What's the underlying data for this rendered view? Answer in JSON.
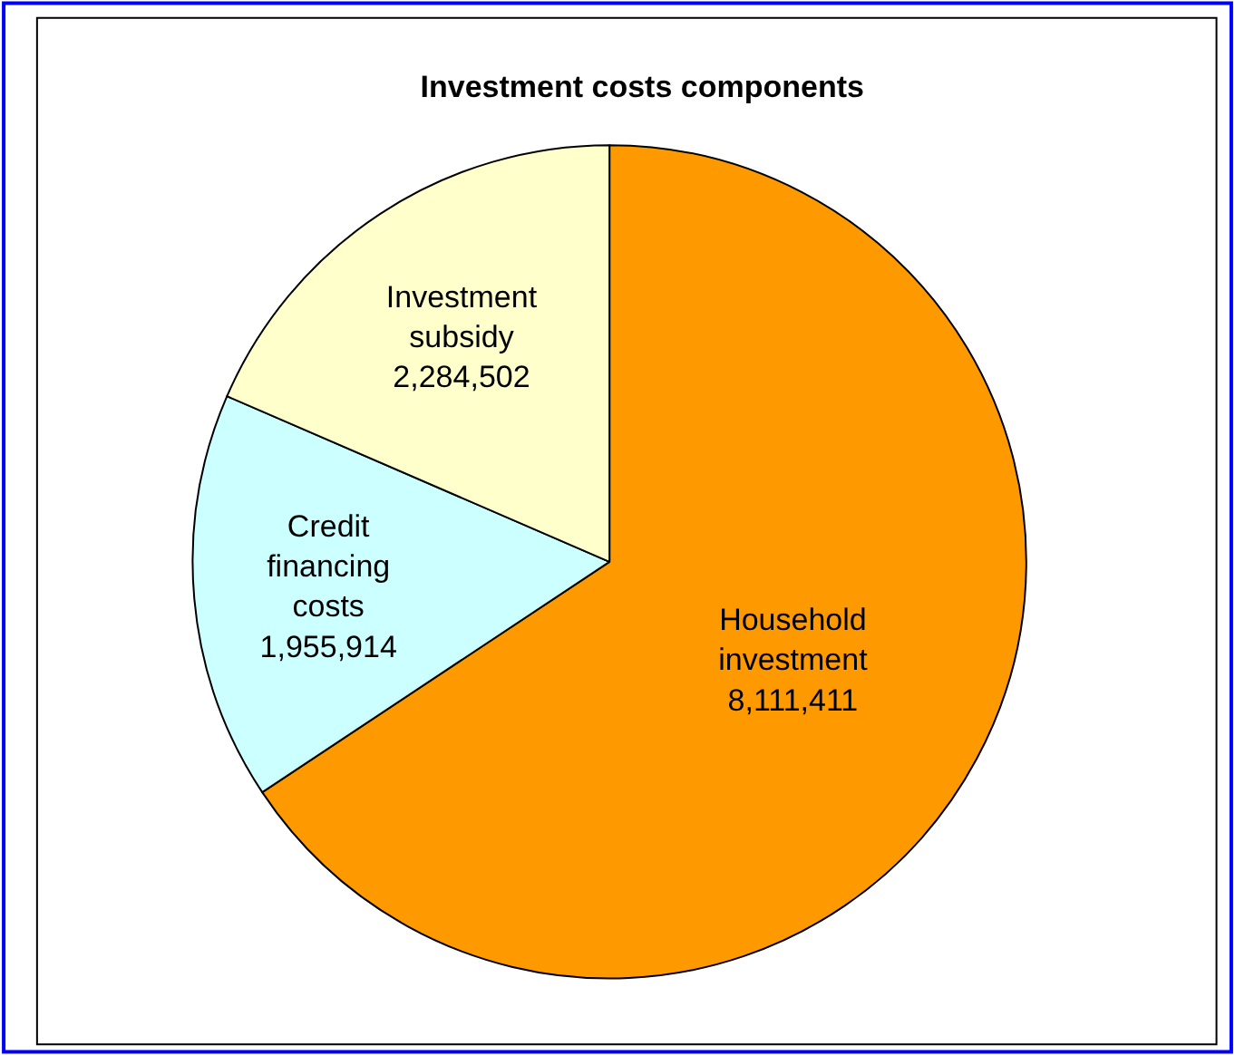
{
  "chart_data": {
    "type": "pie",
    "title": "Investment costs components",
    "categories": [
      "Household investment",
      "Credit financing costs",
      "Investment subsidy"
    ],
    "values": [
      8111411,
      1955914,
      2284502
    ],
    "value_labels": [
      "8,111,411",
      "1,955,914",
      "2,284,502"
    ],
    "colors": [
      "#ff9900",
      "#ccffff",
      "#ffffcc"
    ],
    "legend": false
  }
}
